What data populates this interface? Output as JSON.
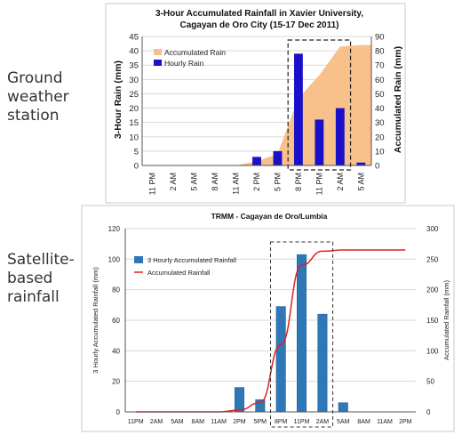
{
  "side_labels": {
    "ground": [
      "Ground",
      "weather",
      "station"
    ],
    "satellite": [
      "Satellite-",
      "based",
      "rainfall"
    ]
  },
  "colors": {
    "hourly_bar": "#1a10c9",
    "accum_area": "#f8c08a",
    "sat_bar": "#2f78b8",
    "sat_line": "#e02020"
  },
  "chart_data": [
    {
      "type": "bar",
      "title": [
        "3-Hour Accumulated Rainfall in  Xavier University,",
        "Cagayan de Oro City (15-17 Dec 2011)"
      ],
      "ylabel": "3-Hour Rain (mm)",
      "y2label": "Accumulated Rain (mm)",
      "ylim": [
        0,
        45
      ],
      "y2lim": [
        0,
        90
      ],
      "yticks": [
        "0",
        "5",
        "10",
        "15",
        "20",
        "25",
        "30",
        "35",
        "40",
        "45"
      ],
      "y2ticks": [
        "0",
        "10",
        "20",
        "30",
        "40",
        "50",
        "60",
        "70",
        "80",
        "90"
      ],
      "xticks": [
        "11 PM",
        "2 AM",
        "5 AM",
        "8 AM",
        "11 AM",
        "2 PM",
        "5 PM",
        "8 PM",
        "11 PM",
        "2 AM",
        "5 AM"
      ],
      "legend": [
        "Accumulated Rain",
        "Hourly Rain"
      ],
      "legend_position": "top-left",
      "grid": true,
      "series": [
        {
          "name": "Hourly Rain",
          "kind": "bar",
          "values": [
            0,
            0,
            0,
            0,
            0,
            3,
            5,
            39,
            16,
            20,
            1
          ]
        },
        {
          "name": "Accumulated Rain",
          "kind": "area",
          "values": [
            0,
            0,
            0,
            0,
            0,
            3,
            8,
            47,
            63,
            83,
            84
          ]
        }
      ],
      "highlight_range": [
        "8 PM",
        "2 AM"
      ]
    },
    {
      "type": "bar",
      "title": "TRMM - Cagayan de Oro/Lumbia",
      "ylabel": "3 Hourly Accumulated Rainfall (mm)",
      "y2label": "Accumulated Rainfall (mm)",
      "ylim": [
        0,
        120
      ],
      "y2lim": [
        0,
        300
      ],
      "yticks": [
        "0",
        "20",
        "40",
        "60",
        "80",
        "100",
        "120"
      ],
      "y2ticks": [
        "0",
        "50",
        "100",
        "150",
        "200",
        "250",
        "300"
      ],
      "xticks": [
        "11PM",
        "2AM",
        "5AM",
        "8AM",
        "11AM",
        "2PM",
        "5PM",
        "8PM",
        "11PM",
        "2AM",
        "5AM",
        "8AM",
        "11AM",
        "2PM"
      ],
      "legend": [
        "3 Hourly Accumulated Rainfall",
        "Accumulated Rainfall"
      ],
      "legend_position": "top-left",
      "grid": true,
      "series": [
        {
          "name": "3 Hourly Accumulated Rainfall",
          "kind": "bar",
          "values": [
            0,
            0,
            0,
            0,
            0,
            16,
            8,
            69,
            103,
            64,
            6,
            0,
            0,
            0
          ]
        },
        {
          "name": "Accumulated Rainfall",
          "kind": "line",
          "values": [
            0,
            0,
            0,
            0,
            0,
            3,
            15,
            110,
            240,
            263,
            265,
            265,
            265,
            265
          ]
        }
      ],
      "highlight_range": [
        "8PM",
        "2AM"
      ]
    }
  ]
}
